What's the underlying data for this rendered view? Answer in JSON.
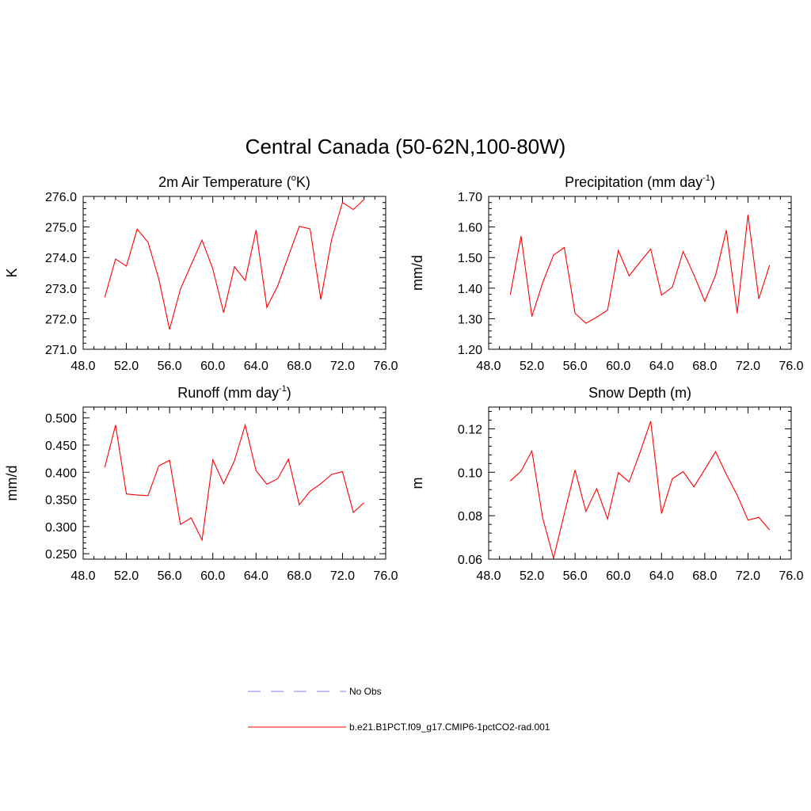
{
  "figure": {
    "title": "Central Canada (50-62N,100-80W)"
  },
  "legend": {
    "items": [
      {
        "label": "No Obs",
        "color": "#9999ee",
        "dash": "dashed"
      },
      {
        "label": "b.e21.B1PCT.f09_g17.CMIP6-1pctCO2-rad.001",
        "color": "#ff0000",
        "dash": "solid"
      }
    ]
  },
  "chart_data": [
    {
      "type": "line",
      "title": "2m Air Temperature (",
      "title_sup": "o",
      "title_after": "K)",
      "ylabel": "K",
      "xlim": [
        48,
        76
      ],
      "ylim": [
        271,
        276
      ],
      "x_ticks": [
        "48.0",
        "52.0",
        "56.0",
        "60.0",
        "64.0",
        "68.0",
        "72.0",
        "76.0"
      ],
      "y_ticks": [
        "271.0",
        "272.0",
        "273.0",
        "274.0",
        "275.0",
        "276.0"
      ],
      "series": [
        {
          "color": "#ff0000",
          "x": [
            50,
            51,
            52,
            53,
            54,
            55,
            56,
            57,
            58,
            59,
            60,
            61,
            62,
            63,
            64,
            65,
            66,
            67,
            68,
            69,
            70,
            71,
            72,
            73,
            74
          ],
          "y": [
            272.7,
            273.95,
            273.72,
            274.93,
            274.5,
            273.3,
            271.65,
            272.97,
            273.77,
            274.57,
            273.63,
            272.2,
            273.7,
            273.25,
            274.9,
            272.37,
            273.07,
            274.05,
            275.02,
            274.94,
            272.63,
            274.6,
            275.8,
            275.57,
            275.9
          ]
        }
      ]
    },
    {
      "type": "line",
      "title": "Precipitation (mm day",
      "title_sup": "-1",
      "title_after": ")",
      "ylabel": "mm/d",
      "xlim": [
        48,
        76
      ],
      "ylim": [
        1.2,
        1.7
      ],
      "x_ticks": [
        "48.0",
        "52.0",
        "56.0",
        "60.0",
        "64.0",
        "68.0",
        "72.0",
        "76.0"
      ],
      "y_ticks": [
        "1.20",
        "1.30",
        "1.40",
        "1.50",
        "1.60",
        "1.70"
      ],
      "series": [
        {
          "color": "#ff0000",
          "x": [
            50,
            51,
            52,
            53,
            54,
            55,
            56,
            57,
            58,
            59,
            60,
            61,
            62,
            63,
            64,
            65,
            66,
            67,
            68,
            69,
            70,
            71,
            72,
            73,
            74
          ],
          "y": [
            1.378,
            1.57,
            1.307,
            1.418,
            1.508,
            1.533,
            1.318,
            1.285,
            1.305,
            1.328,
            1.523,
            1.44,
            1.485,
            1.528,
            1.377,
            1.403,
            1.52,
            1.443,
            1.357,
            1.442,
            1.59,
            1.318,
            1.64,
            1.365,
            1.475
          ]
        }
      ]
    },
    {
      "type": "line",
      "title": "Runoff (mm day",
      "title_sup": "-1",
      "title_after": ")",
      "ylabel": "mm/d",
      "xlim": [
        48,
        76
      ],
      "ylim": [
        0.24,
        0.52
      ],
      "x_ticks": [
        "48.0",
        "52.0",
        "56.0",
        "60.0",
        "64.0",
        "68.0",
        "72.0",
        "76.0"
      ],
      "y_ticks": [
        "0.250",
        "0.300",
        "0.350",
        "0.400",
        "0.450",
        "0.500"
      ],
      "series": [
        {
          "color": "#ff0000",
          "x": [
            50,
            51,
            52,
            53,
            54,
            55,
            56,
            57,
            58,
            59,
            60,
            61,
            62,
            63,
            64,
            65,
            66,
            67,
            68,
            69,
            70,
            71,
            72,
            73,
            74
          ],
          "y": [
            0.409,
            0.487,
            0.36,
            0.358,
            0.357,
            0.412,
            0.422,
            0.304,
            0.316,
            0.275,
            0.423,
            0.379,
            0.421,
            0.487,
            0.403,
            0.378,
            0.388,
            0.424,
            0.34,
            0.365,
            0.379,
            0.396,
            0.401,
            0.326,
            0.344
          ]
        }
      ]
    },
    {
      "type": "line",
      "title": "Snow Depth (m)",
      "ylabel": "m",
      "xlim": [
        48,
        76
      ],
      "ylim": [
        0.06,
        0.13
      ],
      "x_ticks": [
        "48.0",
        "52.0",
        "56.0",
        "60.0",
        "64.0",
        "68.0",
        "72.0",
        "76.0"
      ],
      "y_ticks": [
        "0.06",
        "0.08",
        "0.10",
        "0.12"
      ],
      "series": [
        {
          "color": "#ff0000",
          "x": [
            50,
            51,
            52,
            53,
            54,
            55,
            56,
            57,
            58,
            59,
            60,
            61,
            62,
            63,
            64,
            65,
            66,
            67,
            68,
            69,
            70,
            71,
            72,
            73,
            74
          ],
          "y": [
            0.096,
            0.1005,
            0.1098,
            0.079,
            0.0605,
            0.0808,
            0.101,
            0.082,
            0.0925,
            0.0785,
            0.0998,
            0.0955,
            0.109,
            0.1235,
            0.081,
            0.097,
            0.1003,
            0.0933,
            0.1013,
            0.1095,
            0.099,
            0.0895,
            0.078,
            0.0792,
            0.0735
          ]
        }
      ]
    }
  ]
}
